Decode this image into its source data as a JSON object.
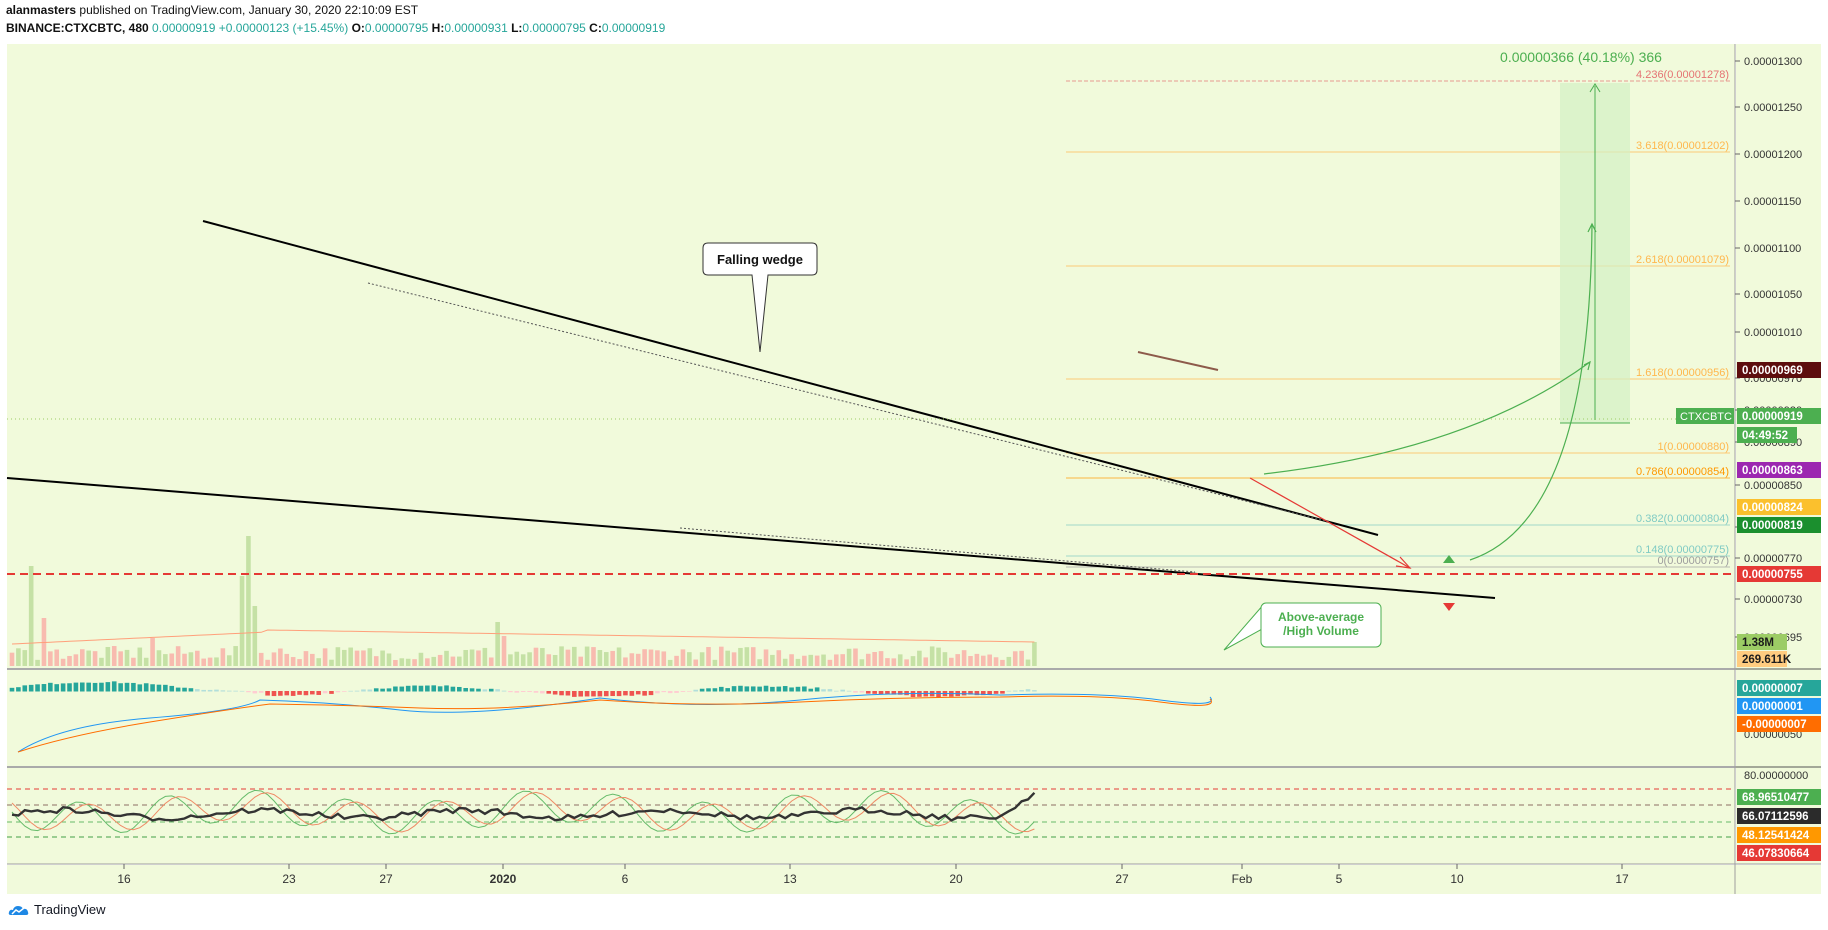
{
  "header": {
    "author": "alanmasters",
    "published_text": "published on TradingView.com, January 30, 2020 22:10:09 EST",
    "symbol": "BINANCE:CTXCBTC, 480",
    "last": "0.00000919",
    "change": "+0.00000123 (+15.45%)",
    "o_label": "O:",
    "o_value": "0.00000795",
    "h_label": "H:",
    "h_value": "0.00000931",
    "l_label": "L:",
    "l_value": "0.00000795",
    "c_label": "C:",
    "c_value": "0.00000919"
  },
  "price_axis": {
    "ticks": [
      "0.00001300",
      "0.00001250",
      "0.00001200",
      "0.00001150",
      "0.00001100",
      "0.00001050",
      "0.00001010",
      "0.00000970",
      "0.00000930",
      "0.00000890",
      "0.00000850",
      "0.00000810",
      "0.00000770",
      "0.00000730",
      "0.00000695"
    ],
    "badges": [
      {
        "text": "0.00000969",
        "color": "#5d0d0d"
      },
      {
        "text": "0.00000919",
        "color": "#4caf50",
        "label": "CTXCBTC"
      },
      {
        "text": "04:49:52",
        "color": "#4caf50"
      },
      {
        "text": "0.00000863",
        "color": "#9c27b0"
      },
      {
        "text": "0.00000824",
        "color": "#fbc02d"
      },
      {
        "text": "0.00000819",
        "color": "#1b8f2e"
      },
      {
        "text": "0.00000755",
        "color": "#e53935"
      }
    ],
    "volume_badges": [
      {
        "text": "1.38M",
        "color": "#9ccc65"
      },
      {
        "text": "269.611K",
        "color": "#ffcc80"
      }
    ]
  },
  "macd_axis": {
    "ticks": [
      "0.00000050"
    ],
    "badges": [
      {
        "text": "0.00000007",
        "color": "#26a69a"
      },
      {
        "text": "0.00000001",
        "color": "#2196f3"
      },
      {
        "text": "-0.00000007",
        "color": "#ff6d00"
      }
    ]
  },
  "stoch_axis": {
    "ticks": [
      "80.00000000"
    ],
    "badges": [
      {
        "text": "68.96510477",
        "color": "#4caf50"
      },
      {
        "text": "66.07112596",
        "color": "#2b2b2b"
      },
      {
        "text": "48.12541424",
        "color": "#ff9800"
      },
      {
        "text": "46.07830664",
        "color": "#e53935"
      }
    ]
  },
  "time_axis": [
    "16",
    "23",
    "27",
    "2020",
    "6",
    "13",
    "20",
    "27",
    "Feb",
    "5",
    "10",
    "17"
  ],
  "annotations": {
    "falling_wedge": "Falling wedge",
    "volume_note_line1": "Above-average",
    "volume_note_line2": "/High Volume",
    "measure_label": "0.00000366 (40.18%) 366"
  },
  "fib_levels": [
    {
      "text": "4.236(0.00001278)",
      "color": "#e57373"
    },
    {
      "text": "3.618(0.00001202)",
      "color": "#ffb74d"
    },
    {
      "text": "2.618(0.00001079)",
      "color": "#ffb74d"
    },
    {
      "text": "1.618(0.00000956)",
      "color": "#ffb74d"
    },
    {
      "text": "1(0.00000880)",
      "color": "#ffb74d"
    },
    {
      "text": "0.786(0.00000854)",
      "color": "#ff9800"
    },
    {
      "text": "0.382(0.00000804)",
      "color": "#80cbc4"
    },
    {
      "text": "0.148(0.00000775)",
      "color": "#80cbc4"
    },
    {
      "text": "0(0.00000757)",
      "color": "#9e9e9e"
    }
  ],
  "footer": {
    "brand": "TradingView"
  },
  "colors": {
    "bg": "#f1fadb",
    "up": "#8bc34a",
    "down": "#e53935",
    "ma_green": "#66bb6a",
    "ma_yellow": "#fbc02d",
    "ma_purple": "#9c27b0",
    "support": "#e53935"
  }
}
